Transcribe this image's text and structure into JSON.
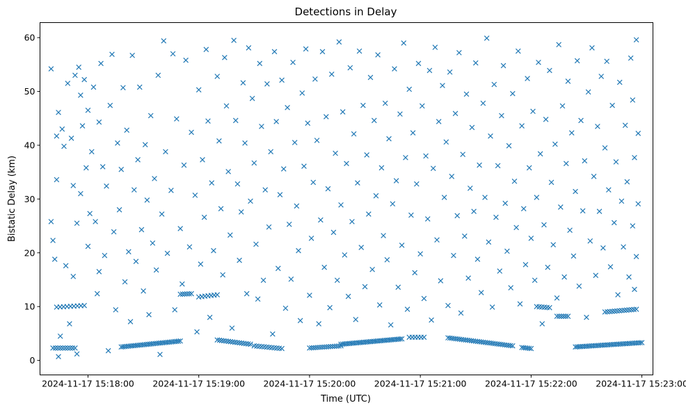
{
  "chart_data": {
    "type": "scatter",
    "title": "Detections in Delay",
    "xlabel": "Time (UTC)",
    "ylabel": "Bistatic Delay (km)",
    "x_units": "seconds relative to 2024-11-17 15:18:00",
    "xlim": [
      -26,
      306
    ],
    "ylim": [
      -2.7,
      62.8
    ],
    "grid": false,
    "marker": "x",
    "color": "#1f77b4",
    "xticks": [
      {
        "value": 0,
        "label": "2024-11-17 15:18:00"
      },
      {
        "value": 60,
        "label": "2024-11-17 15:19:00"
      },
      {
        "value": 120,
        "label": "2024-11-17 15:20:00"
      },
      {
        "value": 180,
        "label": "2024-11-17 15:21:00"
      },
      {
        "value": 240,
        "label": "2024-11-17 15:22:00"
      },
      {
        "value": 300,
        "label": "2024-11-17 15:23:00"
      }
    ],
    "yticks": [
      {
        "value": 0,
        "label": "0"
      },
      {
        "value": 10,
        "label": "10"
      },
      {
        "value": 20,
        "label": "20"
      },
      {
        "value": 30,
        "label": "30"
      },
      {
        "value": 40,
        "label": "40"
      },
      {
        "value": 50,
        "label": "50"
      },
      {
        "value": 60,
        "label": "60"
      }
    ],
    "tracks": [
      {
        "x": [
          -19,
          -7
        ],
        "y": [
          2.3,
          2.3
        ],
        "n": 10
      },
      {
        "x": [
          -17,
          -2
        ],
        "y": [
          9.9,
          10.2
        ],
        "n": 9
      },
      {
        "x": [
          18,
          50
        ],
        "y": [
          2.5,
          3.6
        ],
        "n": 34
      },
      {
        "x": [
          50,
          56
        ],
        "y": [
          12.3,
          12.4
        ],
        "n": 6
      },
      {
        "x": [
          60,
          70
        ],
        "y": [
          11.8,
          12.2
        ],
        "n": 7
      },
      {
        "x": [
          70,
          88
        ],
        "y": [
          3.8,
          3.0
        ],
        "n": 16
      },
      {
        "x": [
          90,
          105
        ],
        "y": [
          2.7,
          2.2
        ],
        "n": 12
      },
      {
        "x": [
          120,
          137
        ],
        "y": [
          2.3,
          2.7
        ],
        "n": 16
      },
      {
        "x": [
          137,
          170
        ],
        "y": [
          3.0,
          4.0
        ],
        "n": 36
      },
      {
        "x": [
          174,
          182
        ],
        "y": [
          4.3,
          4.3
        ],
        "n": 6
      },
      {
        "x": [
          195,
          230
        ],
        "y": [
          4.2,
          2.7
        ],
        "n": 34
      },
      {
        "x": [
          235,
          240
        ],
        "y": [
          2.4,
          2.2
        ],
        "n": 6
      },
      {
        "x": [
          243,
          250
        ],
        "y": [
          10.0,
          9.8
        ],
        "n": 6
      },
      {
        "x": [
          254,
          260
        ],
        "y": [
          8.2,
          8.2
        ],
        "n": 6
      },
      {
        "x": [
          264,
          300
        ],
        "y": [
          2.5,
          3.3
        ],
        "n": 38
      },
      {
        "x": [
          280,
          297
        ],
        "y": [
          9.0,
          9.5
        ],
        "n": 14
      }
    ],
    "points": [
      [
        -20,
        54.2
      ],
      [
        -20,
        25.8
      ],
      [
        -19,
        22.3
      ],
      [
        -18,
        18.8
      ],
      [
        -17,
        41.7
      ],
      [
        -17,
        33.6
      ],
      [
        -16,
        46.1
      ],
      [
        -15,
        4.5
      ],
      [
        -16,
        0.7
      ],
      [
        -14,
        43
      ],
      [
        -13,
        39.8
      ],
      [
        -12,
        17.6
      ],
      [
        -11,
        51.5
      ],
      [
        -10,
        6.8
      ],
      [
        -9,
        41.3
      ],
      [
        -8,
        32.5
      ],
      [
        -8,
        15.6
      ],
      [
        -7,
        53
      ],
      [
        -6,
        25.5
      ],
      [
        -6,
        1.2
      ],
      [
        -5,
        54.5
      ],
      [
        -4,
        49.3
      ],
      [
        -4,
        31
      ],
      [
        -3,
        43.6
      ],
      [
        -2,
        52.2
      ],
      [
        -1,
        35.8
      ],
      [
        0,
        21.2
      ],
      [
        0,
        46.5
      ],
      [
        1,
        27.3
      ],
      [
        2,
        38.8
      ],
      [
        3,
        50.8
      ],
      [
        4,
        25.8
      ],
      [
        5,
        12.4
      ],
      [
        6,
        16.5
      ],
      [
        6,
        44.3
      ],
      [
        7,
        55.2
      ],
      [
        8,
        36
      ],
      [
        9,
        19.5
      ],
      [
        10,
        32.4
      ],
      [
        11,
        1.8
      ],
      [
        12,
        47.4
      ],
      [
        13,
        56.9
      ],
      [
        14,
        23.9
      ],
      [
        15,
        9.4
      ],
      [
        16,
        40.4
      ],
      [
        17,
        28
      ],
      [
        18,
        35.5
      ],
      [
        19,
        50.7
      ],
      [
        20,
        14.6
      ],
      [
        21,
        42.8
      ],
      [
        22,
        20.2
      ],
      [
        23,
        7.2
      ],
      [
        24,
        56.7
      ],
      [
        25,
        31.7
      ],
      [
        26,
        18.4
      ],
      [
        27,
        37.3
      ],
      [
        28,
        50.8
      ],
      [
        29,
        24.3
      ],
      [
        30,
        12.9
      ],
      [
        31,
        40.1
      ],
      [
        32,
        29.8
      ],
      [
        33,
        8.5
      ],
      [
        34,
        45.5
      ],
      [
        35,
        21.8
      ],
      [
        36,
        33.8
      ],
      [
        37,
        16.8
      ],
      [
        38,
        53
      ],
      [
        39,
        1.1
      ],
      [
        40,
        27.2
      ],
      [
        41,
        59.4
      ],
      [
        42,
        38.8
      ],
      [
        43,
        19.9
      ],
      [
        45,
        31.6
      ],
      [
        46,
        57
      ],
      [
        47,
        9.4
      ],
      [
        48,
        44.9
      ],
      [
        50,
        24.5
      ],
      [
        51,
        14.2
      ],
      [
        52,
        36.3
      ],
      [
        53,
        55.8
      ],
      [
        55,
        21.1
      ],
      [
        56,
        42.4
      ],
      [
        58,
        30.7
      ],
      [
        59,
        5.3
      ],
      [
        60,
        50.3
      ],
      [
        61,
        17.9
      ],
      [
        62,
        37.3
      ],
      [
        63,
        26.6
      ],
      [
        64,
        57.8
      ],
      [
        65,
        44.5
      ],
      [
        66,
        8
      ],
      [
        67,
        33
      ],
      [
        68,
        20.4
      ],
      [
        70,
        52.8
      ],
      [
        71,
        40.8
      ],
      [
        72,
        28.2
      ],
      [
        73,
        15.9
      ],
      [
        74,
        56.3
      ],
      [
        75,
        47.3
      ],
      [
        76,
        35.1
      ],
      [
        77,
        23.3
      ],
      [
        78,
        6
      ],
      [
        79,
        59.5
      ],
      [
        80,
        44.6
      ],
      [
        81,
        32.8
      ],
      [
        82,
        18.6
      ],
      [
        83,
        27.6
      ],
      [
        84,
        51.6
      ],
      [
        85,
        40.4
      ],
      [
        86,
        12.4
      ],
      [
        87,
        58.1
      ],
      [
        88,
        29.6
      ],
      [
        89,
        48.7
      ],
      [
        90,
        36.7
      ],
      [
        91,
        21.6
      ],
      [
        92,
        11.4
      ],
      [
        93,
        55.2
      ],
      [
        94,
        43.5
      ],
      [
        95,
        14.9
      ],
      [
        96,
        31.7
      ],
      [
        97,
        51.4
      ],
      [
        98,
        24.8
      ],
      [
        99,
        38.8
      ],
      [
        100,
        4.9
      ],
      [
        101,
        57.4
      ],
      [
        102,
        44.4
      ],
      [
        103,
        17.1
      ],
      [
        104,
        30.8
      ],
      [
        105,
        52.1
      ],
      [
        106,
        35.6
      ],
      [
        107,
        9.7
      ],
      [
        108,
        47
      ],
      [
        109,
        25.3
      ],
      [
        110,
        15.1
      ],
      [
        111,
        55.4
      ],
      [
        112,
        40.5
      ],
      [
        113,
        28.7
      ],
      [
        114,
        20.4
      ],
      [
        115,
        7.4
      ],
      [
        116,
        49.7
      ],
      [
        117,
        36.1
      ],
      [
        118,
        57.9
      ],
      [
        119,
        44.1
      ],
      [
        120,
        12.1
      ],
      [
        121,
        22.7
      ],
      [
        122,
        33.1
      ],
      [
        123,
        52.3
      ],
      [
        124,
        40.9
      ],
      [
        125,
        6.8
      ],
      [
        126,
        26.1
      ],
      [
        127,
        57.4
      ],
      [
        128,
        17.3
      ],
      [
        129,
        45.3
      ],
      [
        130,
        31.9
      ],
      [
        131,
        9.8
      ],
      [
        132,
        53.2
      ],
      [
        133,
        23.8
      ],
      [
        134,
        38.5
      ],
      [
        135,
        14.9
      ],
      [
        136,
        59.2
      ],
      [
        137,
        28.9
      ],
      [
        138,
        46.2
      ],
      [
        139,
        19.6
      ],
      [
        140,
        36.6
      ],
      [
        141,
        11.9
      ],
      [
        142,
        54.4
      ],
      [
        143,
        25.8
      ],
      [
        144,
        42.1
      ],
      [
        145,
        7.6
      ],
      [
        146,
        33
      ],
      [
        147,
        57.5
      ],
      [
        148,
        21
      ],
      [
        149,
        47.4
      ],
      [
        150,
        13.7
      ],
      [
        151,
        38.2
      ],
      [
        152,
        27.2
      ],
      [
        153,
        52.6
      ],
      [
        154,
        16.9
      ],
      [
        155,
        44.6
      ],
      [
        156,
        30.6
      ],
      [
        157,
        56.8
      ],
      [
        158,
        10.3
      ],
      [
        159,
        35.8
      ],
      [
        160,
        23.2
      ],
      [
        161,
        47.8
      ],
      [
        162,
        18.7
      ],
      [
        163,
        41.2
      ],
      [
        164,
        6.6
      ],
      [
        165,
        29.1
      ],
      [
        166,
        54.2
      ],
      [
        167,
        33.4
      ],
      [
        168,
        13.6
      ],
      [
        169,
        45.8
      ],
      [
        170,
        21.4
      ],
      [
        171,
        59
      ],
      [
        172,
        37.7
      ],
      [
        173,
        9.5
      ],
      [
        174,
        50.4
      ],
      [
        175,
        27
      ],
      [
        176,
        42.3
      ],
      [
        177,
        16.3
      ],
      [
        178,
        32.8
      ],
      [
        179,
        55.2
      ],
      [
        180,
        19.8
      ],
      [
        181,
        47.3
      ],
      [
        182,
        11.5
      ],
      [
        183,
        38
      ],
      [
        184,
        26.3
      ],
      [
        185,
        53.9
      ],
      [
        186,
        7.5
      ],
      [
        187,
        35.7
      ],
      [
        188,
        58.2
      ],
      [
        189,
        22.4
      ],
      [
        190,
        44.4
      ],
      [
        191,
        14.8
      ],
      [
        192,
        51.1
      ],
      [
        193,
        30.3
      ],
      [
        194,
        40.6
      ],
      [
        195,
        10.2
      ],
      [
        196,
        53.6
      ],
      [
        197,
        34.2
      ],
      [
        198,
        19.5
      ],
      [
        199,
        45.9
      ],
      [
        200,
        26.9
      ],
      [
        201,
        57.2
      ],
      [
        202,
        8.8
      ],
      [
        203,
        38.3
      ],
      [
        204,
        23.1
      ],
      [
        205,
        49.5
      ],
      [
        206,
        15.3
      ],
      [
        207,
        32
      ],
      [
        208,
        43.3
      ],
      [
        209,
        27.7
      ],
      [
        210,
        55.3
      ],
      [
        211,
        18.8
      ],
      [
        212,
        36.3
      ],
      [
        213,
        12.6
      ],
      [
        214,
        47.8
      ],
      [
        215,
        30.3
      ],
      [
        216,
        59.9
      ],
      [
        217,
        22
      ],
      [
        218,
        41.7
      ],
      [
        219,
        9.9
      ],
      [
        220,
        51.3
      ],
      [
        221,
        26.6
      ],
      [
        222,
        36.2
      ],
      [
        223,
        16.6
      ],
      [
        224,
        45.5
      ],
      [
        225,
        54.8
      ],
      [
        226,
        29.2
      ],
      [
        227,
        20.3
      ],
      [
        228,
        39.9
      ],
      [
        229,
        13.5
      ],
      [
        230,
        49.6
      ],
      [
        231,
        33.3
      ],
      [
        232,
        24.7
      ],
      [
        233,
        57.5
      ],
      [
        234,
        10.5
      ],
      [
        235,
        43.6
      ],
      [
        236,
        28.2
      ],
      [
        237,
        17.8
      ],
      [
        238,
        52.4
      ],
      [
        239,
        35.8
      ],
      [
        240,
        22.7
      ],
      [
        241,
        46.3
      ],
      [
        242,
        14.9
      ],
      [
        243,
        30.3
      ],
      [
        244,
        55.4
      ],
      [
        245,
        38.4
      ],
      [
        246,
        6.8
      ],
      [
        247,
        25.2
      ],
      [
        248,
        44.8
      ],
      [
        249,
        17.3
      ],
      [
        250,
        53.9
      ],
      [
        251,
        33.1
      ],
      [
        252,
        21.5
      ],
      [
        253,
        40.2
      ],
      [
        254,
        11.6
      ],
      [
        255,
        58.7
      ],
      [
        256,
        28.5
      ],
      [
        257,
        47.3
      ],
      [
        258,
        15.5
      ],
      [
        259,
        36.6
      ],
      [
        260,
        51.9
      ],
      [
        261,
        24.2
      ],
      [
        262,
        42.3
      ],
      [
        263,
        19.4
      ],
      [
        264,
        31.4
      ],
      [
        265,
        55.7
      ],
      [
        266,
        13.8
      ],
      [
        267,
        44.6
      ],
      [
        268,
        27.8
      ],
      [
        269,
        37.1
      ],
      [
        270,
        8
      ],
      [
        271,
        49.9
      ],
      [
        272,
        22.2
      ],
      [
        273,
        58.1
      ],
      [
        274,
        34.2
      ],
      [
        275,
        15.8
      ],
      [
        276,
        43.5
      ],
      [
        277,
        27.7
      ],
      [
        278,
        52.8
      ],
      [
        279,
        20.9
      ],
      [
        280,
        39.5
      ],
      [
        281,
        55.6
      ],
      [
        282,
        31.7
      ],
      [
        283,
        17.4
      ],
      [
        284,
        47.4
      ],
      [
        285,
        25.6
      ],
      [
        286,
        36.9
      ],
      [
        287,
        12.2
      ],
      [
        288,
        51.7
      ],
      [
        289,
        29.6
      ],
      [
        290,
        21.1
      ],
      [
        291,
        43.7
      ],
      [
        292,
        33.2
      ],
      [
        293,
        15.5
      ],
      [
        294,
        56.2
      ],
      [
        295,
        25
      ],
      [
        296,
        37.7
      ],
      [
        297,
        19.3
      ],
      [
        298,
        29.1
      ],
      [
        298,
        42.2
      ],
      [
        297,
        59.6
      ],
      [
        296,
        13.2
      ],
      [
        295,
        48.4
      ]
    ]
  }
}
